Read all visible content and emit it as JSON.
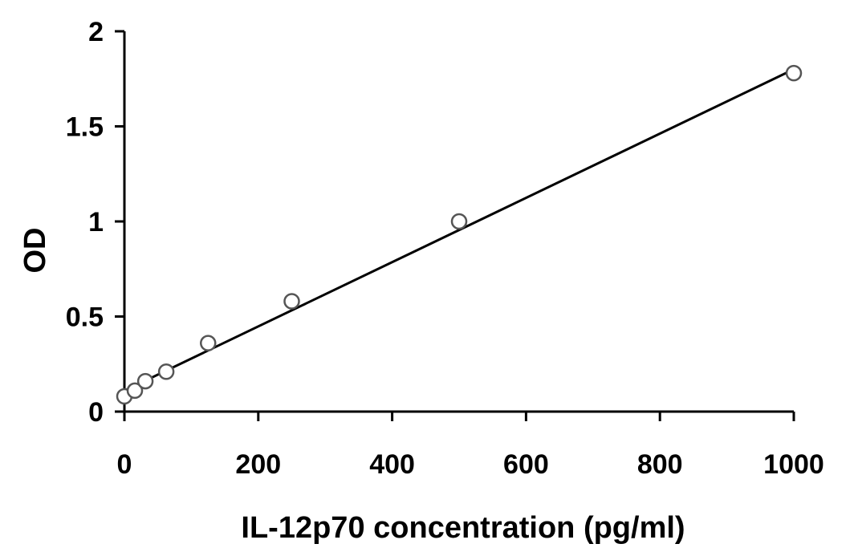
{
  "chart_data": {
    "type": "scatter",
    "xlabel": "IL-12p70 concentration (pg/ml)",
    "ylabel": "OD",
    "xlim": [
      0,
      1000
    ],
    "ylim": [
      0,
      2
    ],
    "x_ticks": [
      0,
      200,
      400,
      600,
      800,
      1000
    ],
    "y_ticks": [
      0,
      0.5,
      1,
      1.5,
      2
    ],
    "x_tick_labels": [
      "0",
      "200",
      "400",
      "600",
      "800",
      "1000"
    ],
    "y_tick_labels": [
      "0",
      "0.5",
      "1",
      "1.5",
      "2"
    ],
    "grid": false,
    "marker": "open-circle",
    "points": [
      {
        "x": 0,
        "y": 0.08
      },
      {
        "x": 15.6,
        "y": 0.11
      },
      {
        "x": 31.3,
        "y": 0.16
      },
      {
        "x": 62.5,
        "y": 0.21
      },
      {
        "x": 125,
        "y": 0.36
      },
      {
        "x": 250,
        "y": 0.58
      },
      {
        "x": 500,
        "y": 1.0
      },
      {
        "x": 1000,
        "y": 1.78
      }
    ],
    "trendline": {
      "type": "linear",
      "x": [
        0,
        1000
      ],
      "y": [
        0.11,
        1.8
      ]
    },
    "colors": {
      "axis": "#000000",
      "marker_edge": "#555555",
      "marker_fill": "#ffffff",
      "trendline": "#000000"
    }
  }
}
